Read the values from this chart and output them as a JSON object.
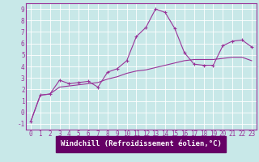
{
  "xlabel": "Windchill (Refroidissement éolien,°C)",
  "background_color": "#c8e8e8",
  "grid_color": "#b0d8d8",
  "line_color": "#993399",
  "xlabel_bg_color": "#660066",
  "xlabel_text_color": "#ffffff",
  "xlim": [
    -0.5,
    23.5
  ],
  "ylim": [
    -1.5,
    9.5
  ],
  "xticks": [
    0,
    1,
    2,
    3,
    4,
    5,
    6,
    7,
    8,
    9,
    10,
    11,
    12,
    13,
    14,
    15,
    16,
    17,
    18,
    19,
    20,
    21,
    22,
    23
  ],
  "yticks": [
    -1,
    0,
    1,
    2,
    3,
    4,
    5,
    6,
    7,
    8,
    9
  ],
  "line1_x": [
    0,
    1,
    2,
    3,
    4,
    5,
    6,
    7,
    8,
    9,
    10,
    11,
    12,
    13,
    14,
    15,
    16,
    17,
    18,
    19,
    20,
    21,
    22,
    23
  ],
  "line1_y": [
    -0.8,
    1.5,
    1.6,
    2.8,
    2.5,
    2.6,
    2.7,
    2.2,
    3.5,
    3.8,
    4.5,
    6.6,
    7.4,
    9.0,
    8.7,
    7.3,
    5.2,
    4.2,
    4.1,
    4.1,
    5.8,
    6.2,
    6.3,
    5.7
  ],
  "line2_x": [
    0,
    1,
    2,
    3,
    4,
    5,
    6,
    7,
    8,
    9,
    10,
    11,
    12,
    13,
    14,
    15,
    16,
    17,
    18,
    19,
    20,
    21,
    22,
    23
  ],
  "line2_y": [
    -0.8,
    1.5,
    1.6,
    2.2,
    2.3,
    2.4,
    2.5,
    2.6,
    2.9,
    3.1,
    3.4,
    3.6,
    3.7,
    3.9,
    4.1,
    4.3,
    4.5,
    4.6,
    4.6,
    4.6,
    4.7,
    4.8,
    4.8,
    4.5
  ],
  "tick_fontsize": 5.5,
  "xlabel_fontsize": 6.5
}
